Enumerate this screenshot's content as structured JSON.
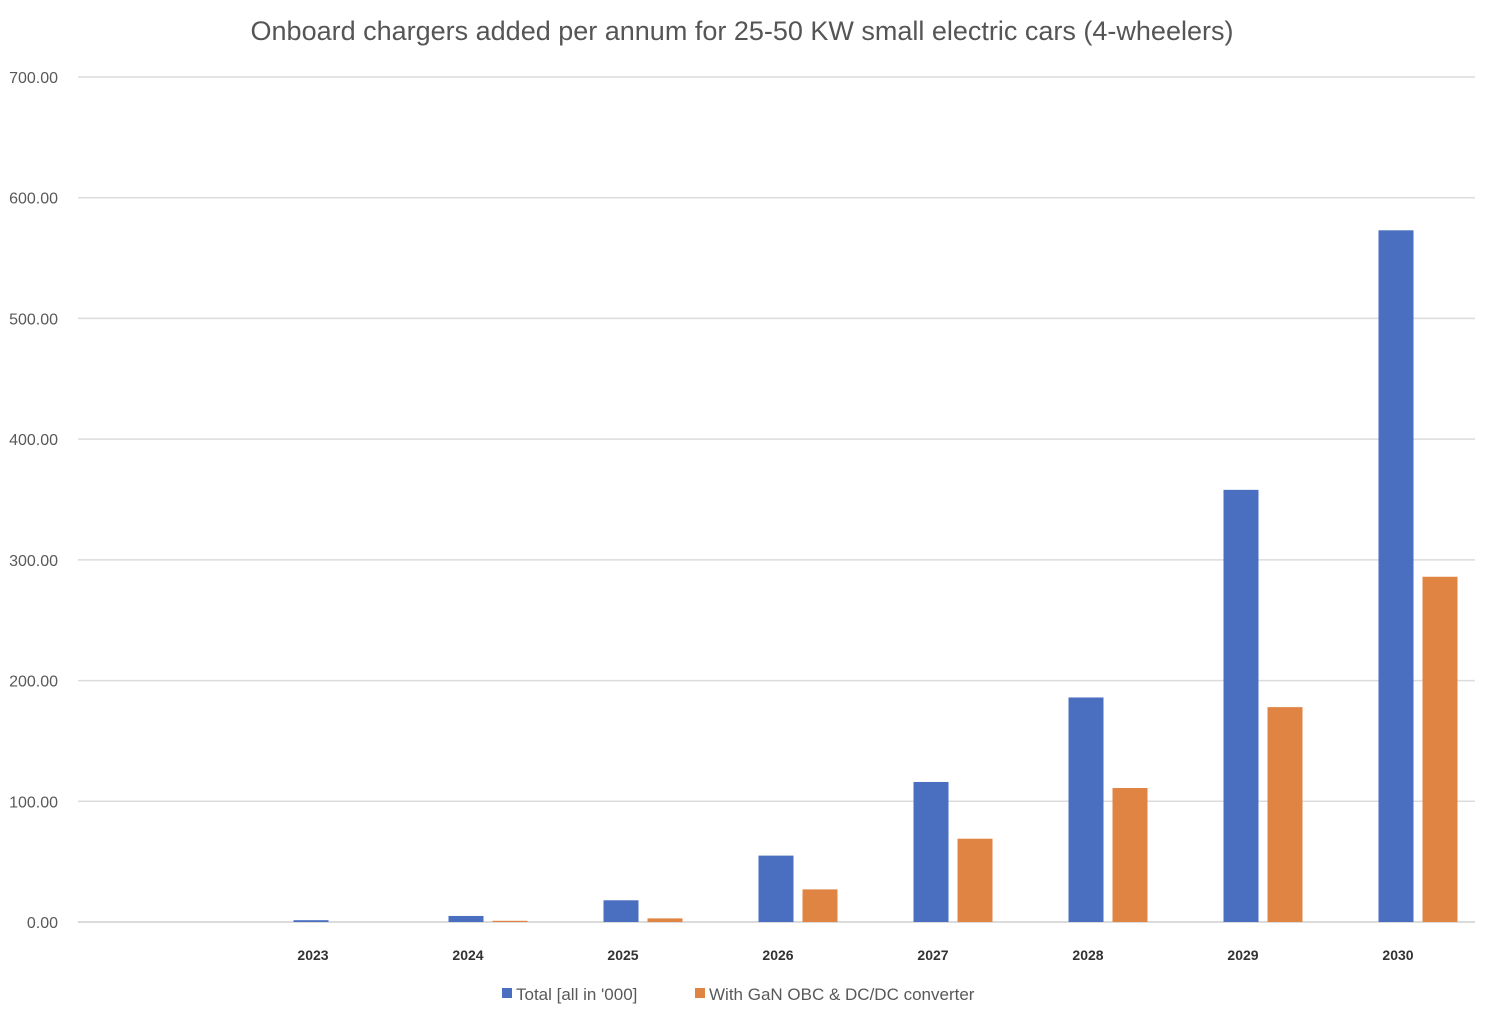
{
  "chart_data": {
    "type": "bar",
    "title": "Onboard chargers added per annum for 25-50 KW small electric cars (4-wheelers)",
    "xlabel": "",
    "ylabel": "",
    "ylim": [
      0,
      700
    ],
    "yticks": [
      "0.00",
      "100.00",
      "200.00",
      "300.00",
      "400.00",
      "500.00",
      "600.00",
      "700.00"
    ],
    "categories": [
      "2023",
      "2024",
      "2025",
      "2026",
      "2027",
      "2028",
      "2029",
      "2030"
    ],
    "series": [
      {
        "name": "Total [all in '000]",
        "color": "#4a6fc0",
        "values": [
          1.5,
          5,
          18,
          55,
          116,
          186,
          358,
          573
        ]
      },
      {
        "name": "With GaN OBC & DC/DC converter",
        "color": "#e08443",
        "values": [
          0,
          1,
          3,
          27,
          69,
          111,
          178,
          286
        ]
      }
    ],
    "grid": true,
    "legend_position": "bottom"
  }
}
